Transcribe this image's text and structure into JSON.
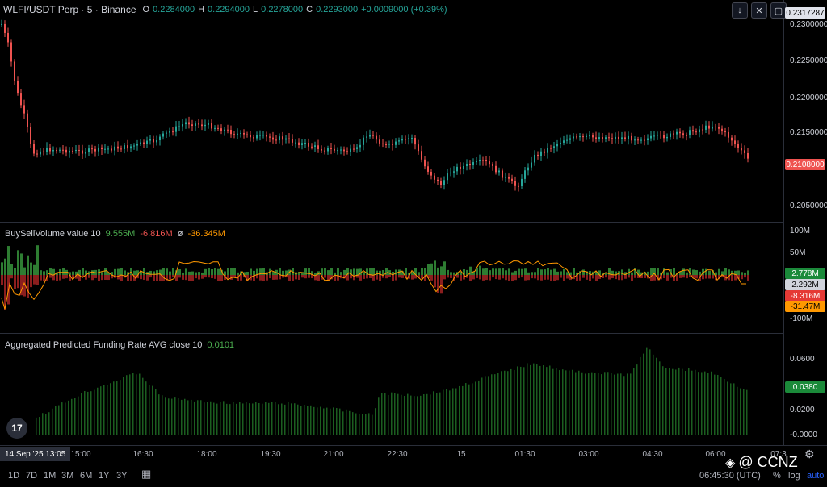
{
  "header": {
    "symbol": "WLFI/USDT Perp · 5 · Binance",
    "ohlc": [
      {
        "k": "O",
        "v": "0.2284000"
      },
      {
        "k": "H",
        "v": "0.2294000"
      },
      {
        "k": "L",
        "v": "0.2278000"
      },
      {
        "k": "C",
        "v": "0.2293000"
      },
      {
        "k": "",
        "v": "+0.0009000 (+0.39%)"
      }
    ]
  },
  "price_scale": {
    "labels": [
      "0.2300000",
      "0.2250000",
      "0.2200000",
      "0.2150000",
      "0.2050000"
    ],
    "top_badge": "0.2317287",
    "last_price_badge": "0.2108000"
  },
  "volume_pane": {
    "title": "BuySellVolume value 10",
    "buy": "9.555M",
    "sell": "-6.816M",
    "symbol": "ø",
    "delta": "-36.345M",
    "axis": [
      "100M",
      "50M",
      "-100M"
    ],
    "badges": {
      "buy": "2.778M",
      "net": "2.292M",
      "sell": "-8.316M",
      "delta": "-31.47M"
    }
  },
  "funding_pane": {
    "title": "Aggregated Predicted Funding Rate AVG close 10",
    "value": "0.0101",
    "axis": [
      "0.0600",
      "0.0200",
      "-0.0000"
    ],
    "badge": "0.0380"
  },
  "time_axis": {
    "date_badge": "14 Sep '25   13:05",
    "labels": [
      "15:00",
      "16:30",
      "18:00",
      "19:30",
      "21:00",
      "22:30",
      "15",
      "01:30",
      "03:00",
      "04:30",
      "06:00",
      "07:3"
    ]
  },
  "bottom_bar": {
    "ranges": [
      "1D",
      "7D",
      "1M",
      "3M",
      "6M",
      "1Y",
      "3Y"
    ],
    "clock": "06:45:30 (UTC)",
    "percent": "%",
    "log": "log",
    "auto": "auto"
  },
  "watermark": "@ CCNZ",
  "colors": {
    "up": "#26a69a",
    "down": "#ef5350",
    "orange": "#ff9800",
    "bar_green": "#2e7d32",
    "funding": "#1b5e20"
  }
}
